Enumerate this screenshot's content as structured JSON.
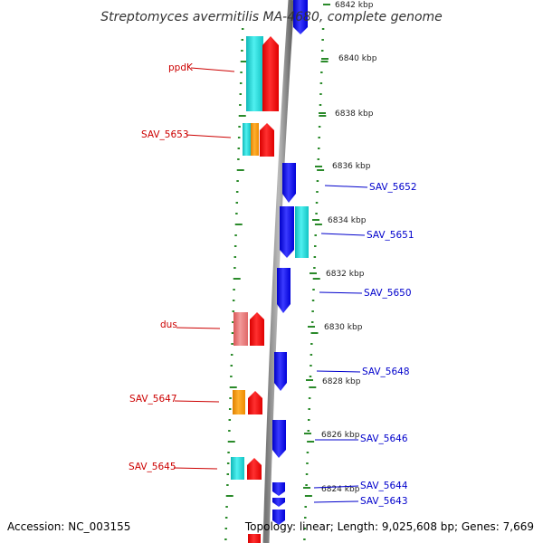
{
  "title": "Streptomyces avermitilis MA-4680, complete genome",
  "accession": "Accession: NC_003155",
  "summary": "Topology: linear; Length: 9,025,608 bp; Genes: 7,669",
  "scale_labels": [
    "6842 kbp",
    "6840 kbp",
    "6838 kbp",
    "6836 kbp",
    "6834 kbp",
    "6832 kbp",
    "6830 kbp",
    "6828 kbp",
    "6826 kbp",
    "6824 kbp"
  ],
  "left_genes": [
    {
      "label": "ppdK",
      "feature_color": "#22d4d4",
      "gene_color": "#ff0000"
    },
    {
      "label": "SAV_5653",
      "feature_color": "#ff9900",
      "gene_color": "#ff0000"
    },
    {
      "label": "dus",
      "feature_color": "#e86a6a",
      "gene_color": "#ff0000"
    },
    {
      "label": "SAV_5647",
      "feature_color": "#ff9900",
      "gene_color": "#ff0000"
    },
    {
      "label": "SAV_5645",
      "feature_color": "#22e0e0",
      "gene_color": "#ff0000"
    }
  ],
  "right_genes": [
    {
      "label": "SAV_5652",
      "gene_color": "#0000ee"
    },
    {
      "label": "SAV_5651",
      "gene_color": "#0000ee",
      "feature_color": "#22d4d4"
    },
    {
      "label": "SAV_5650",
      "gene_color": "#0000ee"
    },
    {
      "label": "SAV_5648",
      "gene_color": "#0000ee"
    },
    {
      "label": "SAV_5646",
      "gene_color": "#0000ee"
    },
    {
      "label": "SAV_5644",
      "gene_color": "#0000ee"
    },
    {
      "label": "SAV_5643",
      "gene_color": "#0000ee"
    }
  ],
  "colors": {
    "backbone": "#888888",
    "tick": "#2a8a2a",
    "left_label": "#cc0000",
    "right_label": "#0000cc"
  }
}
